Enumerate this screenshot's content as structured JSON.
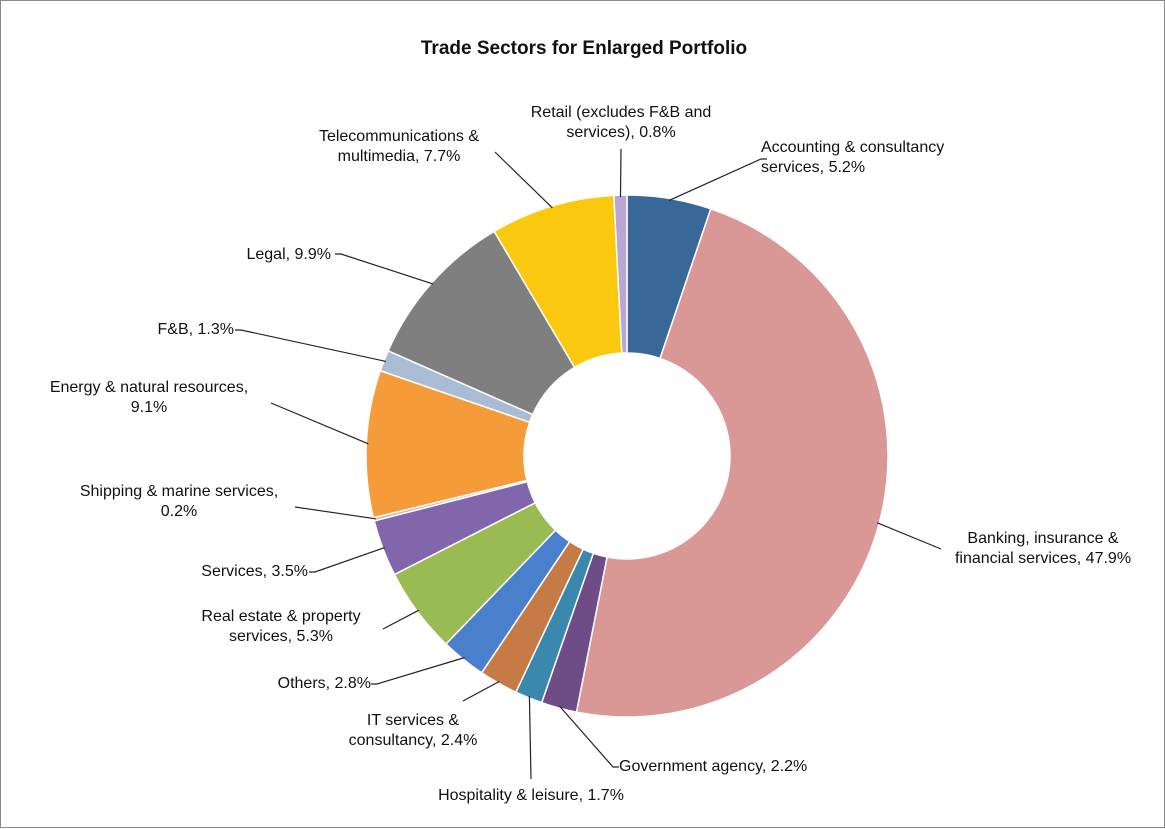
{
  "chart_data": {
    "type": "pie",
    "title": "Trade Sectors for Enlarged Portfolio",
    "slices": [
      {
        "name": "Accounting & consultancy services",
        "value": 5.2,
        "label": [
          "Accounting & consultancy",
          "services, 5.2%"
        ],
        "color": "#376897"
      },
      {
        "name": "Banking, insurance & financial services",
        "value": 47.9,
        "label": [
          "Banking, insurance &",
          "financial services, 47.9%"
        ],
        "color": "#d99795"
      },
      {
        "name": "Government agency",
        "value": 2.2,
        "label": [
          "Government agency, 2.2%"
        ],
        "color": "#6f4c87"
      },
      {
        "name": "Hospitality & leisure",
        "value": 1.7,
        "label": [
          "Hospitality & leisure, 1.7%"
        ],
        "color": "#3a88ad"
      },
      {
        "name": "IT services & consultancy",
        "value": 2.4,
        "label": [
          "IT services &",
          "consultancy, 2.4%"
        ],
        "color": "#c67b46"
      },
      {
        "name": "Others",
        "value": 2.8,
        "label": [
          "Others, 2.8%"
        ],
        "color": "#4a7fcc"
      },
      {
        "name": "Real estate & property services",
        "value": 5.3,
        "label": [
          "Real estate & property",
          "services, 5.3%"
        ],
        "color": "#9aba54"
      },
      {
        "name": "Services",
        "value": 3.5,
        "label": [
          "Services, 3.5%"
        ],
        "color": "#8266ab"
      },
      {
        "name": "Shipping & marine services",
        "value": 0.2,
        "label": [
          "Shipping & marine services,",
          "0.2%"
        ],
        "color": "#c3b7a4"
      },
      {
        "name": "Energy & natural resources",
        "value": 9.1,
        "label": [
          "Energy & natural resources,",
          "9.1%"
        ],
        "color": "#f59b3a"
      },
      {
        "name": "F&B",
        "value": 1.3,
        "label": [
          "F&B, 1.3%"
        ],
        "color": "#a9bcd4"
      },
      {
        "name": "Legal",
        "value": 9.9,
        "label": [
          "Legal, 9.9%"
        ],
        "color": "#7f7f7f"
      },
      {
        "name": "Telecommunications & multimedia",
        "value": 7.7,
        "label": [
          "Telecommunications &",
          "multimedia, 7.7%"
        ],
        "color": "#fac90f"
      },
      {
        "name": "Retail (excludes F&B and services)",
        "value": 0.8,
        "label": [
          "Retail (excludes F&B and",
          "services), 0.8%"
        ],
        "color": "#b9a6d2"
      }
    ],
    "donut": true,
    "legend": "none"
  }
}
